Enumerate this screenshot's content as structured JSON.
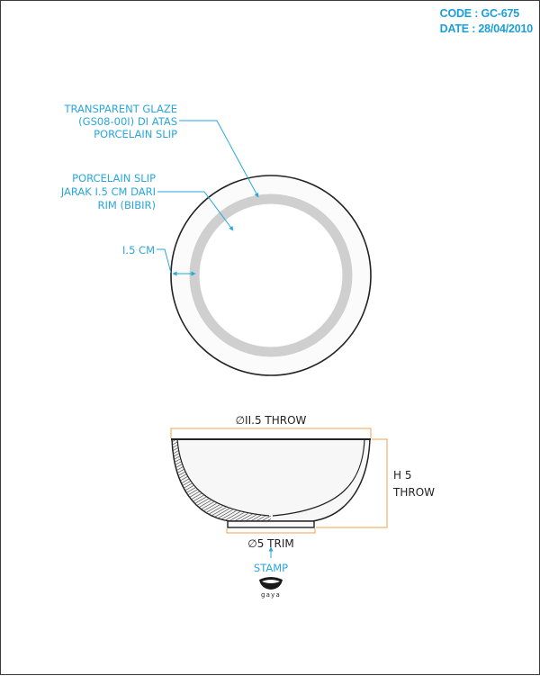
{
  "header": {
    "code": "CODE : GC-675",
    "date": "DATE : 28/04/2010"
  },
  "top_view": {
    "glaze_callout": [
      "TRANSPARENT GLAZE",
      "(GS08-00I) DI ATAS",
      "PORCELAIN SLIP"
    ],
    "slip_callout": [
      "PORCELAIN SLIP",
      "JARAK I.5 CM DARI",
      "RIM (BIBIR)"
    ],
    "band_width": "I.5 CM"
  },
  "side_view": {
    "diameter": "∅II.5 THROW",
    "height": [
      "H 5",
      "THROW"
    ],
    "foot": "∅5 TRIM",
    "stamp": "STAMP",
    "logo_text": "gaya"
  },
  "colors": {
    "accent": "#2aa7dc",
    "dimension_line": "#f0a050",
    "header": "#1a9fd8",
    "band": "#cfcfcf",
    "bowl_fill": "#f7f7f7"
  }
}
